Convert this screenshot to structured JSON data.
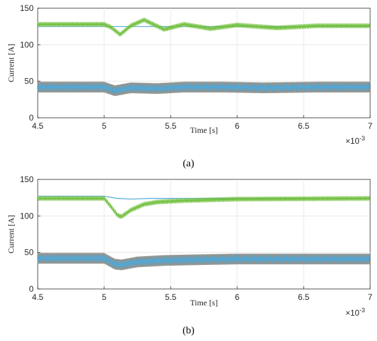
{
  "chart_data": [
    {
      "type": "line",
      "caption": "(a)",
      "xlabel": "Time [s]",
      "ylabel": "Current [A]",
      "x_exponent_label": "×10",
      "x_exponent_power": "-3",
      "xlim": [
        4.5,
        7
      ],
      "ylim": [
        0,
        150
      ],
      "xticks": [
        "4.5",
        "5",
        "5.5",
        "6",
        "6.5",
        "7"
      ],
      "yticks": [
        "0",
        "50",
        "100",
        "150"
      ],
      "grid": true,
      "series": [
        {
          "role": "reference",
          "color": "#4FA8D8",
          "x": [
            4.5,
            7
          ],
          "y": [
            125,
            125
          ]
        },
        {
          "role": "total",
          "color": "#6FBF3A",
          "x": [
            4.5,
            5.0,
            5.05,
            5.12,
            5.2,
            5.3,
            5.45,
            5.6,
            5.8,
            6.0,
            6.3,
            6.6,
            7.0
          ],
          "y": [
            128,
            128,
            124,
            114,
            126,
            134,
            121,
            128,
            122,
            127,
            123,
            126,
            126
          ],
          "ripple": 3
        },
        {
          "role": "phase-1",
          "color": "#E8772E",
          "x": [
            4.5,
            5.0,
            5.08,
            5.2,
            5.4,
            5.6,
            5.9,
            6.2,
            6.6,
            7.0
          ],
          "y": [
            42,
            42,
            37,
            41,
            40,
            42,
            42,
            41,
            42,
            42
          ],
          "ripple": 7
        },
        {
          "role": "phase-2",
          "color": "#4FA8D8",
          "x": [
            4.5,
            5.0,
            5.08,
            5.2,
            5.4,
            5.6,
            5.9,
            6.2,
            6.6,
            7.0
          ],
          "y": [
            42,
            42,
            37,
            41,
            40,
            42,
            42,
            41,
            42,
            42
          ],
          "ripple": 7
        }
      ]
    },
    {
      "type": "line",
      "caption": "(b)",
      "xlabel": "Time [s]",
      "ylabel": "Current [A]",
      "x_exponent_label": "×10",
      "x_exponent_power": "-3",
      "xlim": [
        4.5,
        7
      ],
      "ylim": [
        0,
        150
      ],
      "xticks": [
        "4.5",
        "5",
        "5.5",
        "6",
        "6.5",
        "7"
      ],
      "yticks": [
        "0",
        "50",
        "100",
        "150"
      ],
      "grid": true,
      "series": [
        {
          "role": "reference",
          "color": "#4FA8D8",
          "x": [
            4.5,
            5.0,
            5.1,
            5.2,
            5.35,
            7.0
          ],
          "y": [
            127,
            127,
            124,
            123,
            124,
            124
          ]
        },
        {
          "role": "total",
          "color": "#6FBF3A",
          "x": [
            4.5,
            5.0,
            5.05,
            5.1,
            5.13,
            5.2,
            5.3,
            5.4,
            5.6,
            5.8,
            6.0,
            7.0
          ],
          "y": [
            124,
            124,
            113,
            101,
            99,
            108,
            116,
            119,
            121,
            122,
            123,
            124
          ],
          "ripple": 3
        },
        {
          "role": "phase-1",
          "color": "#E8772E",
          "x": [
            4.5,
            5.0,
            5.08,
            5.13,
            5.25,
            5.45,
            5.7,
            6.0,
            7.0
          ],
          "y": [
            42,
            42,
            34,
            33,
            37,
            39,
            40,
            41,
            41
          ],
          "ripple": 7
        },
        {
          "role": "phase-2",
          "color": "#4FA8D8",
          "x": [
            4.5,
            5.0,
            5.08,
            5.13,
            5.25,
            5.45,
            5.7,
            6.0,
            7.0
          ],
          "y": [
            42,
            42,
            34,
            33,
            37,
            39,
            40,
            41,
            41
          ],
          "ripple": 7
        }
      ]
    }
  ]
}
